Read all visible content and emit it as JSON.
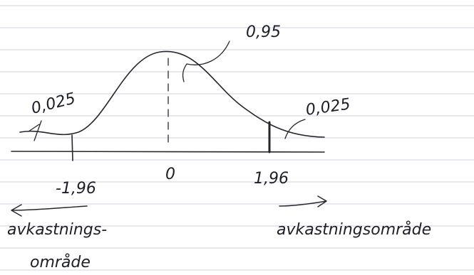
{
  "labels": {
    "center_probability": "0,95",
    "left_tail": "0,025",
    "right_tail": "0,025",
    "left_critical": "-1,96",
    "mean": "0",
    "right_critical": "1,96",
    "left_region": [
      "avkastnings-",
      "område"
    ],
    "right_region": "avkastningsområde"
  }
}
